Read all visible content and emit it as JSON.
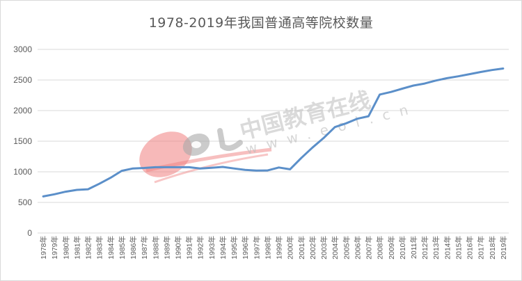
{
  "title": "1978-2019年我国普通高等院校数量",
  "watermark": {
    "logo": "eol",
    "text": "中国教育在线",
    "url": "www.eol.cn"
  },
  "colors": {
    "line": "#5b8fc9",
    "grid": "#d9d9d9",
    "text": "#595959",
    "watermark_red": "#f08080",
    "watermark_gray": "#b0b0b0"
  },
  "chart_data": {
    "type": "line",
    "title": "1978-2019年我国普通高等院校数量",
    "xlabel": "",
    "ylabel": "",
    "ylim": [
      0,
      3000
    ],
    "yticks": [
      0,
      500,
      1000,
      1500,
      2000,
      2500,
      3000
    ],
    "grid": true,
    "legend": "none",
    "categories": [
      "1978年",
      "1979年",
      "1980年",
      "1981年",
      "1982年",
      "1983年",
      "1984年",
      "1985年",
      "1986年",
      "1987年",
      "1988年",
      "1989年",
      "1990年",
      "1991年",
      "1992年",
      "1993年",
      "1994年",
      "1995年",
      "1996年",
      "1997年",
      "1998年",
      "1999年",
      "2000年",
      "2001年",
      "2002年",
      "2003年",
      "2004年",
      "2005年",
      "2006年",
      "2007年",
      "2008年",
      "2009年",
      "2010年",
      "2011年",
      "2012年",
      "2013年",
      "2014年",
      "2015年",
      "2016年",
      "2017年",
      "2018年",
      "2019年"
    ],
    "series": [
      {
        "name": "普通高等院校数量",
        "values": [
          598,
          633,
          675,
          704,
          715,
          805,
          902,
          1016,
          1054,
          1063,
          1075,
          1075,
          1075,
          1075,
          1053,
          1065,
          1080,
          1054,
          1032,
          1020,
          1022,
          1071,
          1041,
          1225,
          1396,
          1552,
          1731,
          1792,
          1867,
          1908,
          2263,
          2305,
          2358,
          2409,
          2442,
          2491,
          2529,
          2560,
          2596,
          2631,
          2663,
          2688
        ]
      }
    ]
  }
}
